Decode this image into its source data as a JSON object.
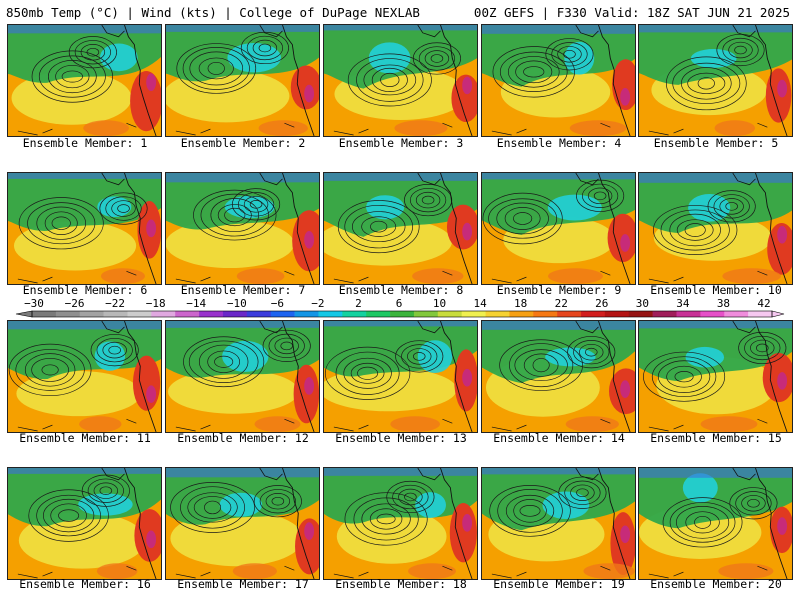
{
  "header": {
    "left": "850mb Temp (°C) | Wind (kts) | College of DuPage NEXLAB",
    "right": "00Z GEFS | F330 Valid: 18Z SAT JUN 21 2025"
  },
  "colorbar": {
    "ticks": [
      "−30",
      "−26",
      "−22",
      "−18",
      "−14",
      "−10",
      "−6",
      "−2",
      "2",
      "6",
      "10",
      "14",
      "18",
      "22",
      "26",
      "30",
      "34",
      "38",
      "42"
    ],
    "colors": [
      "#7a7a7a",
      "#8f8f8f",
      "#a3a3a3",
      "#b8b8b8",
      "#cccccc",
      "#e0a8e0",
      "#cc66cc",
      "#9933cc",
      "#6a28c8",
      "#3c3cdc",
      "#1e64f0",
      "#1496e6",
      "#14c8e6",
      "#14d2a0",
      "#1ec864",
      "#3cb43c",
      "#82c83c",
      "#c8dc3c",
      "#f0f050",
      "#f5d232",
      "#f5a014",
      "#f57814",
      "#e6461e",
      "#d21e1e",
      "#b41414",
      "#961414",
      "#a01e5a",
      "#c83296",
      "#e650c8",
      "#f08cdc",
      "#f5c8f0"
    ]
  },
  "palette": {
    "orange": "#f5a000",
    "yellow": "#f0e040",
    "green": "#2fa84a",
    "cyan": "#22d0d8",
    "red": "#e03a20",
    "magenta": "#c02890"
  },
  "members": [
    {
      "label": "Ensemble Member: 1"
    },
    {
      "label": "Ensemble Member: 2"
    },
    {
      "label": "Ensemble Member: 3"
    },
    {
      "label": "Ensemble Member: 4"
    },
    {
      "label": "Ensemble Member: 5"
    },
    {
      "label": "Ensemble Member: 6"
    },
    {
      "label": "Ensemble Member: 7"
    },
    {
      "label": "Ensemble Member: 8"
    },
    {
      "label": "Ensemble Member: 9"
    },
    {
      "label": "Ensemble Member: 10"
    },
    {
      "label": "Ensemble Member: 11"
    },
    {
      "label": "Ensemble Member: 12"
    },
    {
      "label": "Ensemble Member: 13"
    },
    {
      "label": "Ensemble Member: 14"
    },
    {
      "label": "Ensemble Member: 15"
    },
    {
      "label": "Ensemble Member: 16"
    },
    {
      "label": "Ensemble Member: 17"
    },
    {
      "label": "Ensemble Member: 18"
    },
    {
      "label": "Ensemble Member: 19"
    },
    {
      "label": "Ensemble Member: 20"
    }
  ]
}
